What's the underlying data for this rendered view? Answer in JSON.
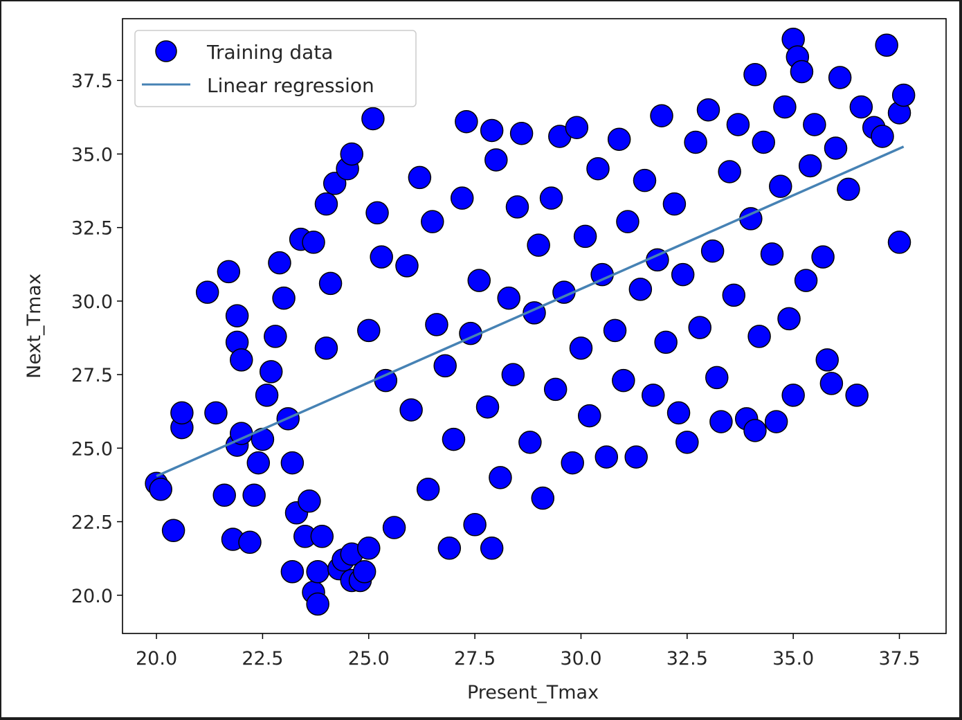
{
  "chart_data": {
    "type": "scatter",
    "xlabel": "Present_Tmax",
    "ylabel": "Next_Tmax",
    "xlim": [
      19.2,
      38.6
    ],
    "ylim": [
      18.7,
      39.6
    ],
    "x_ticks": [
      "20.0",
      "22.5",
      "25.0",
      "27.5",
      "30.0",
      "32.5",
      "35.0",
      "37.5"
    ],
    "y_ticks": [
      "20.0",
      "22.5",
      "25.0",
      "27.5",
      "30.0",
      "32.5",
      "35.0",
      "37.5"
    ],
    "legend": {
      "placement": "top-left",
      "entries": [
        "Training data",
        "Linear regression"
      ]
    },
    "colors": {
      "marker_fill": "#0000ff",
      "marker_edge": "#000000",
      "line": "#4682b4"
    },
    "series": [
      {
        "name": "Training data",
        "type": "scatter",
        "points": [
          [
            20.0,
            23.8
          ],
          [
            20.1,
            23.6
          ],
          [
            20.4,
            22.2
          ],
          [
            20.6,
            25.7
          ],
          [
            20.6,
            26.2
          ],
          [
            21.2,
            30.3
          ],
          [
            21.4,
            26.2
          ],
          [
            21.6,
            23.4
          ],
          [
            21.7,
            31.0
          ],
          [
            21.8,
            21.9
          ],
          [
            21.9,
            28.6
          ],
          [
            21.9,
            29.5
          ],
          [
            22.0,
            28.0
          ],
          [
            22.2,
            21.8
          ],
          [
            21.9,
            25.1
          ],
          [
            22.0,
            25.5
          ],
          [
            22.3,
            23.4
          ],
          [
            22.4,
            24.5
          ],
          [
            22.5,
            25.3
          ],
          [
            22.6,
            26.8
          ],
          [
            22.7,
            27.6
          ],
          [
            22.8,
            28.8
          ],
          [
            22.9,
            31.3
          ],
          [
            23.0,
            30.1
          ],
          [
            23.1,
            26.0
          ],
          [
            23.2,
            24.5
          ],
          [
            23.2,
            20.8
          ],
          [
            23.3,
            22.8
          ],
          [
            23.4,
            32.1
          ],
          [
            23.5,
            22.0
          ],
          [
            23.6,
            23.2
          ],
          [
            23.7,
            32.0
          ],
          [
            23.7,
            20.1
          ],
          [
            23.8,
            20.8
          ],
          [
            23.8,
            19.7
          ],
          [
            23.9,
            22.0
          ],
          [
            24.0,
            33.3
          ],
          [
            24.0,
            28.4
          ],
          [
            24.1,
            30.6
          ],
          [
            24.2,
            34.0
          ],
          [
            24.3,
            20.9
          ],
          [
            24.4,
            21.2
          ],
          [
            24.5,
            34.5
          ],
          [
            24.6,
            20.5
          ],
          [
            24.6,
            21.4
          ],
          [
            24.8,
            20.5
          ],
          [
            24.9,
            20.8
          ],
          [
            24.6,
            35.0
          ],
          [
            25.0,
            29.0
          ],
          [
            25.1,
            36.2
          ],
          [
            25.0,
            21.6
          ],
          [
            25.2,
            33.0
          ],
          [
            25.3,
            31.5
          ],
          [
            25.4,
            27.3
          ],
          [
            25.6,
            22.3
          ],
          [
            25.9,
            31.2
          ],
          [
            26.0,
            26.3
          ],
          [
            26.2,
            34.2
          ],
          [
            26.4,
            23.6
          ],
          [
            26.5,
            32.7
          ],
          [
            26.6,
            29.2
          ],
          [
            26.8,
            27.8
          ],
          [
            26.9,
            21.6
          ],
          [
            27.0,
            25.3
          ],
          [
            27.2,
            33.5
          ],
          [
            27.3,
            36.1
          ],
          [
            27.4,
            28.9
          ],
          [
            27.5,
            22.4
          ],
          [
            27.6,
            30.7
          ],
          [
            27.8,
            26.4
          ],
          [
            27.9,
            21.6
          ],
          [
            27.9,
            35.8
          ],
          [
            28.0,
            34.8
          ],
          [
            28.1,
            24.0
          ],
          [
            28.3,
            30.1
          ],
          [
            28.4,
            27.5
          ],
          [
            28.5,
            33.2
          ],
          [
            28.6,
            35.7
          ],
          [
            28.8,
            25.2
          ],
          [
            28.9,
            29.6
          ],
          [
            29.0,
            31.9
          ],
          [
            29.1,
            23.3
          ],
          [
            29.3,
            33.5
          ],
          [
            29.4,
            27.0
          ],
          [
            29.5,
            35.6
          ],
          [
            29.6,
            30.3
          ],
          [
            29.8,
            24.5
          ],
          [
            29.9,
            35.9
          ],
          [
            30.0,
            28.4
          ],
          [
            30.1,
            32.2
          ],
          [
            30.2,
            26.1
          ],
          [
            30.4,
            34.5
          ],
          [
            30.5,
            30.9
          ],
          [
            30.6,
            24.7
          ],
          [
            30.8,
            29.0
          ],
          [
            30.9,
            35.5
          ],
          [
            31.0,
            27.3
          ],
          [
            31.1,
            32.7
          ],
          [
            31.3,
            24.7
          ],
          [
            31.4,
            30.4
          ],
          [
            31.5,
            34.1
          ],
          [
            31.7,
            26.8
          ],
          [
            31.8,
            31.4
          ],
          [
            31.9,
            36.3
          ],
          [
            32.0,
            28.6
          ],
          [
            32.2,
            33.3
          ],
          [
            32.3,
            26.2
          ],
          [
            32.4,
            30.9
          ],
          [
            32.5,
            25.2
          ],
          [
            32.7,
            35.4
          ],
          [
            32.8,
            29.1
          ],
          [
            33.0,
            36.5
          ],
          [
            33.1,
            31.7
          ],
          [
            33.2,
            27.4
          ],
          [
            33.3,
            25.9
          ],
          [
            33.5,
            34.4
          ],
          [
            33.6,
            30.2
          ],
          [
            33.7,
            36.0
          ],
          [
            33.9,
            26.0
          ],
          [
            34.0,
            32.8
          ],
          [
            34.1,
            37.7
          ],
          [
            34.1,
            25.6
          ],
          [
            34.2,
            28.8
          ],
          [
            34.3,
            35.4
          ],
          [
            34.5,
            31.6
          ],
          [
            34.6,
            25.9
          ],
          [
            34.7,
            33.9
          ],
          [
            34.8,
            36.6
          ],
          [
            34.9,
            29.4
          ],
          [
            35.0,
            26.8
          ],
          [
            35.0,
            38.9
          ],
          [
            35.1,
            38.3
          ],
          [
            35.2,
            37.8
          ],
          [
            35.3,
            30.7
          ],
          [
            35.4,
            34.6
          ],
          [
            35.5,
            36.0
          ],
          [
            35.7,
            31.5
          ],
          [
            35.8,
            28.0
          ],
          [
            35.9,
            27.2
          ],
          [
            36.0,
            35.2
          ],
          [
            36.1,
            37.6
          ],
          [
            36.3,
            33.8
          ],
          [
            36.5,
            26.8
          ],
          [
            36.6,
            36.6
          ],
          [
            36.9,
            35.9
          ],
          [
            37.1,
            35.6
          ],
          [
            37.2,
            38.7
          ],
          [
            37.5,
            36.4
          ],
          [
            37.6,
            37.0
          ],
          [
            37.5,
            32.0
          ]
        ]
      },
      {
        "name": "Linear regression",
        "type": "line",
        "x": [
          20.0,
          37.6
        ],
        "y": [
          24.05,
          35.25
        ]
      }
    ]
  }
}
